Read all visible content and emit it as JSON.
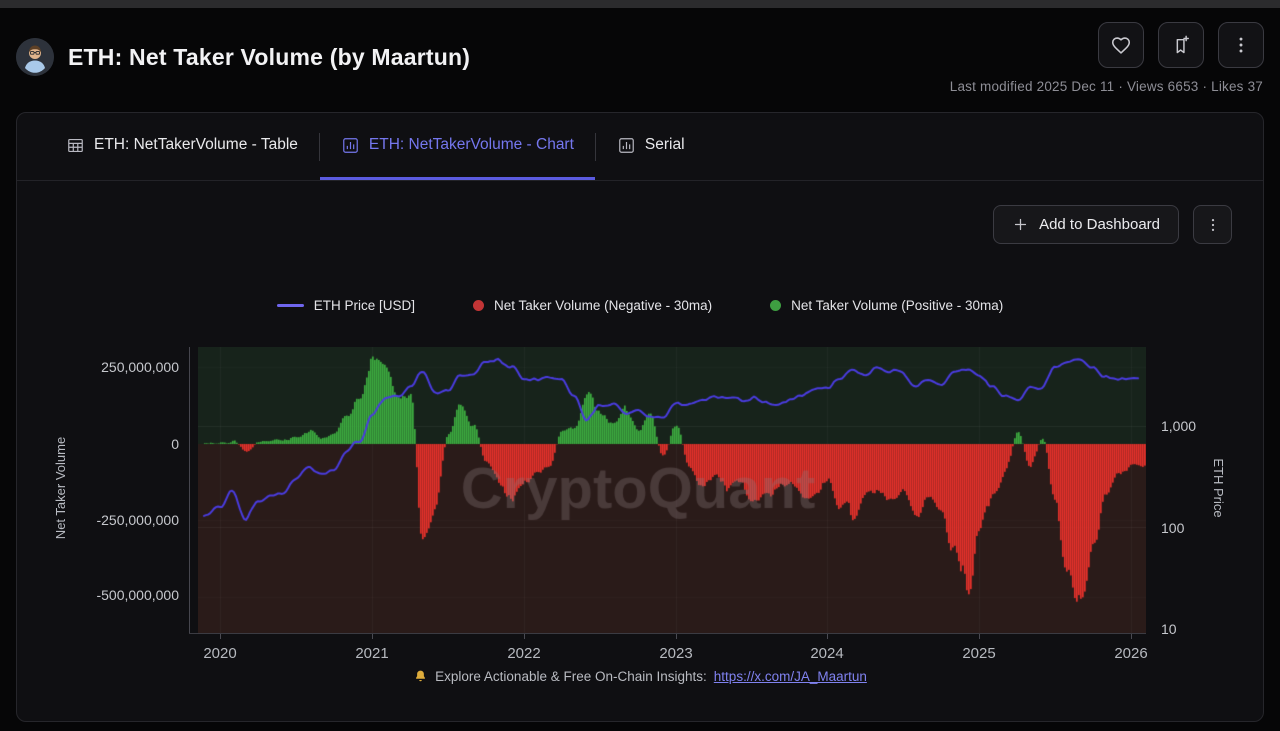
{
  "header": {
    "title": "ETH: Net Taker Volume (by Maartun)",
    "meta": "Last modified 2025 Dec 11 · Views 6653 · Likes 37",
    "buttons": {
      "like": "like",
      "bookmark": "bookmark-add",
      "more": "more-options"
    }
  },
  "tabs": [
    {
      "label": "ETH: NetTakerVolume - Table",
      "icon": "table-icon",
      "active": false
    },
    {
      "label": "ETH: NetTakerVolume - Chart",
      "icon": "bar-chart-icon",
      "active": true
    },
    {
      "label": "Serial",
      "icon": "bar-chart-icon",
      "active": false
    }
  ],
  "toolbar": {
    "add_to_dashboard": "Add to Dashboard"
  },
  "legend": [
    {
      "label": "ETH Price [USD]",
      "swatch": "line",
      "color": "#6f66ee"
    },
    {
      "label": "Net Taker Volume (Negative - 30ma)",
      "swatch": "dot",
      "color": "#c23536"
    },
    {
      "label": "Net Taker Volume (Positive - 30ma)",
      "swatch": "dot",
      "color": "#3e9e41"
    }
  ],
  "footer": {
    "icon": "bell-icon",
    "text": "Explore Actionable & Free On-Chain Insights:",
    "link_text": "https://x.com/JA_Maartun"
  },
  "chart_data": {
    "type": "line+bar",
    "watermark": "CryptoQuant",
    "colors": {
      "price_line": "#4a3ce0",
      "bar_positive": "#3cab3f",
      "bar_negative": "#e5312b",
      "bg_above_zero": "#17231b",
      "bg_below_zero": "#2a1b19",
      "right_axis_line": "#3e35db"
    },
    "left_axis": {
      "label": "Net Taker Volume",
      "ticks": [
        "250,000,000",
        "0",
        "-250,000,000",
        "-500,000,000"
      ],
      "tick_values": [
        250000000,
        0,
        -250000000,
        -500000000
      ],
      "range": [
        -611000000,
        317000000
      ]
    },
    "right_axis": {
      "label": "ETH Price",
      "scale": "log",
      "ticks": [
        "1,000",
        "100",
        "10"
      ],
      "tick_values": [
        1000,
        100,
        10
      ],
      "range": [
        9.5,
        5800
      ]
    },
    "x_axis": {
      "ticks": [
        "2020",
        "2021",
        "2022",
        "2023",
        "2024",
        "2025",
        "2026"
      ],
      "range": [
        2019.89,
        2026.1
      ],
      "unit": "year"
    },
    "x": [
      "2019-12",
      "2020-01",
      "2020-02",
      "2020-03",
      "2020-04",
      "2020-05",
      "2020-06",
      "2020-07",
      "2020-08",
      "2020-09",
      "2020-10",
      "2020-11",
      "2020-12",
      "2021-01",
      "2021-02",
      "2021-03",
      "2021-04",
      "2021-05",
      "2021-06",
      "2021-07",
      "2021-08",
      "2021-09",
      "2021-10",
      "2021-11",
      "2021-12",
      "2022-01",
      "2022-02",
      "2022-03",
      "2022-04",
      "2022-05",
      "2022-06",
      "2022-07",
      "2022-08",
      "2022-09",
      "2022-10",
      "2022-11",
      "2022-12",
      "2023-01",
      "2023-02",
      "2023-03",
      "2023-04",
      "2023-05",
      "2023-06",
      "2023-07",
      "2023-08",
      "2023-09",
      "2023-10",
      "2023-11",
      "2023-12",
      "2024-01",
      "2024-02",
      "2024-03",
      "2024-04",
      "2024-05",
      "2024-06",
      "2024-07",
      "2024-08",
      "2024-09",
      "2024-10",
      "2024-11",
      "2024-12",
      "2025-01",
      "2025-02",
      "2025-03",
      "2025-04",
      "2025-05",
      "2025-06",
      "2025-07",
      "2025-08",
      "2025-09",
      "2025-10",
      "2025-11",
      "2025-12",
      "2026-01"
    ],
    "series": [
      {
        "name": "ETH Price [USD]",
        "type": "line",
        "axis": "right",
        "values_usd": [
          128,
          162,
          238,
          122,
          180,
          210,
          230,
          300,
          410,
          355,
          385,
          560,
          700,
          1250,
          1750,
          1820,
          2500,
          3700,
          2100,
          2250,
          3150,
          3100,
          4050,
          4550,
          3850,
          2700,
          2850,
          3250,
          2950,
          1950,
          1120,
          1600,
          1620,
          1340,
          1480,
          1220,
          1200,
          1620,
          1640,
          1790,
          1920,
          1840,
          1880,
          1860,
          1680,
          1640,
          1790,
          2040,
          2320,
          2320,
          2940,
          3580,
          3120,
          3760,
          3420,
          3240,
          2540,
          2620,
          2500,
          3620,
          3420,
          3250,
          2420,
          1880,
          1790,
          2540,
          2440,
          3640,
          4480,
          4220,
          3920,
          2980,
          3050,
          3150
        ]
      },
      {
        "name": "Net Taker Volume (30ma)",
        "type": "bar",
        "axis": "left",
        "unit": "million USD",
        "values_million_usd": [
          5,
          8,
          6,
          -18,
          8,
          12,
          10,
          22,
          45,
          15,
          30,
          85,
          160,
          270,
          230,
          150,
          190,
          -340,
          -190,
          30,
          120,
          60,
          -70,
          -130,
          -160,
          -140,
          -100,
          -60,
          40,
          60,
          150,
          90,
          70,
          110,
          50,
          90,
          -40,
          70,
          -70,
          -130,
          -100,
          -150,
          -120,
          -160,
          -180,
          -140,
          -130,
          -170,
          -150,
          -130,
          -190,
          -230,
          -160,
          -150,
          -210,
          -170,
          -250,
          -190,
          -210,
          -360,
          -490,
          -260,
          -160,
          -90,
          35,
          -70,
          25,
          -210,
          -420,
          -530,
          -310,
          -160,
          -90,
          -70
        ]
      }
    ]
  }
}
